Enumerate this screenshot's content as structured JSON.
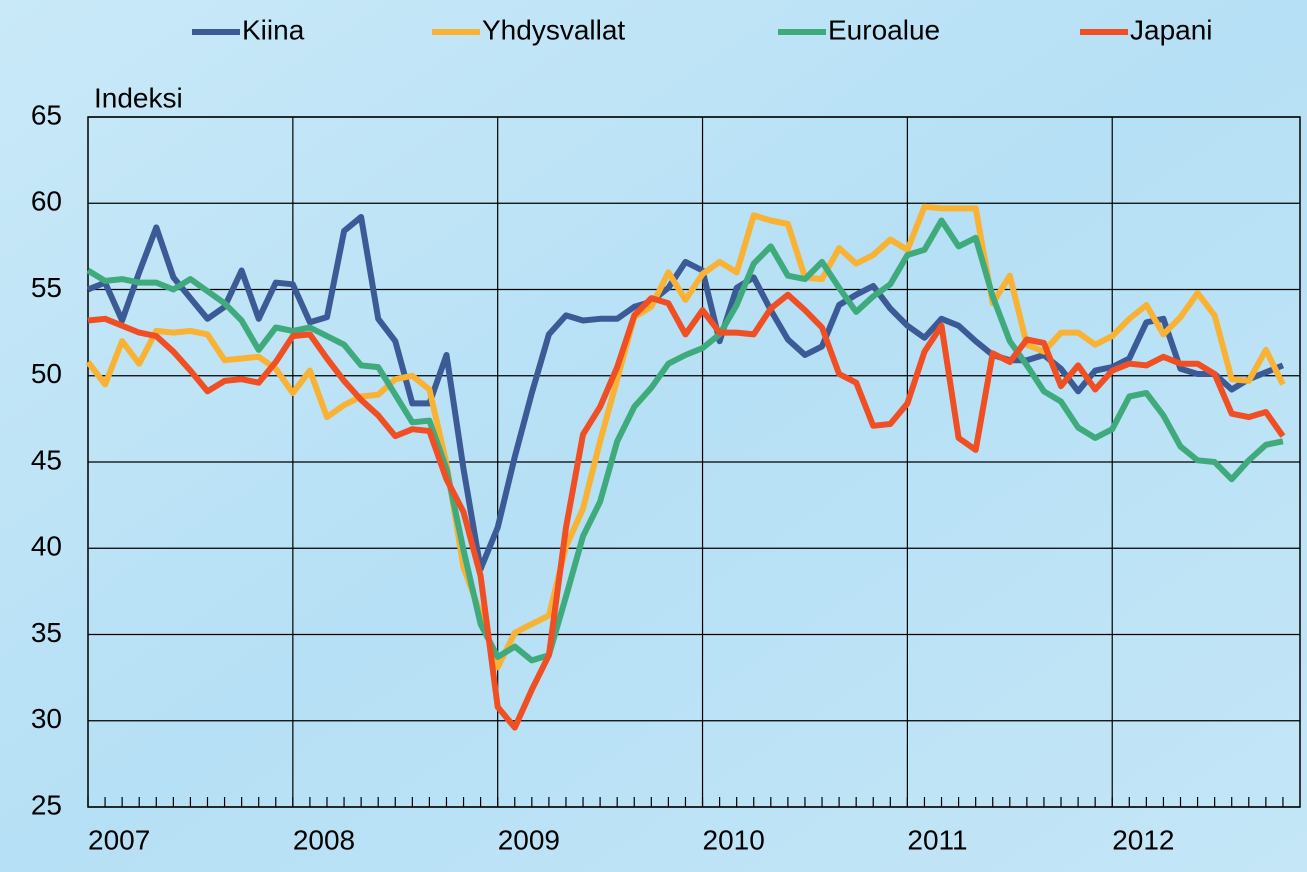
{
  "chart_data": {
    "type": "line",
    "ylabel": "Indeksi",
    "categories": [
      "2007",
      null,
      null,
      null,
      null,
      null,
      null,
      null,
      null,
      null,
      null,
      null,
      "2008",
      null,
      null,
      null,
      null,
      null,
      null,
      null,
      null,
      null,
      null,
      null,
      "2009",
      null,
      null,
      null,
      null,
      null,
      null,
      null,
      null,
      null,
      null,
      null,
      "2010",
      null,
      null,
      null,
      null,
      null,
      null,
      null,
      null,
      null,
      null,
      null,
      "2011",
      null,
      null,
      null,
      null,
      null,
      null,
      null,
      null,
      null,
      null,
      null,
      "2012",
      null,
      null,
      null,
      null,
      null,
      null,
      null,
      null,
      null,
      null
    ],
    "ylim": [
      25,
      65
    ],
    "yticks": [
      25,
      30,
      35,
      40,
      45,
      50,
      55,
      60,
      65
    ],
    "grid": true,
    "legend": "top",
    "series": [
      {
        "name": "Kiina",
        "color": "#3b5a96",
        "values": [
          55,
          55.4,
          53.2,
          56,
          58.6,
          55.7,
          54.5,
          53.3,
          54,
          56.1,
          53.3,
          55.4,
          55.3,
          53.1,
          53.4,
          58.4,
          59.2,
          53.3,
          52,
          48.4,
          48.4,
          51.2,
          44.6,
          38.8,
          41.2,
          45.3,
          49,
          52.4,
          53.5,
          53.2,
          53.3,
          53.3,
          54,
          54.3,
          55.1,
          56.6,
          56.1,
          52,
          55.1,
          55.7,
          53.8,
          52.1,
          51.2,
          51.7,
          54.1,
          54.7,
          55.2,
          53.9,
          52.9,
          52.2,
          53.3,
          52.9,
          52,
          51.2,
          50.9,
          50.9,
          51.2,
          50.4,
          49.1,
          50.3,
          50.5,
          51,
          53.1,
          53.3,
          50.4,
          50.1,
          50.1,
          49.2,
          49.8,
          50.2,
          50.6
        ]
      },
      {
        "name": "Yhdysvallat",
        "color": "#f9b233",
        "values": [
          50.8,
          49.5,
          52,
          50.7,
          52.6,
          52.5,
          52.6,
          52.4,
          50.9,
          51,
          51.1,
          50.4,
          49,
          50.3,
          47.6,
          48.3,
          48.8,
          48.9,
          49.8,
          50,
          49.2,
          44.9,
          38.9,
          36.2,
          33.1,
          35.1,
          35.6,
          36.1,
          40.1,
          42.3,
          46.2,
          49.8,
          53.4,
          54,
          56,
          54.4,
          55.9,
          56.6,
          56,
          59.3,
          59,
          58.8,
          55.7,
          55.6,
          57.4,
          56.5,
          57,
          57.9,
          57.3,
          59.8,
          59.7,
          59.7,
          59.7,
          54.2,
          55.8,
          51.8,
          51.4,
          52.5,
          52.5,
          51.8,
          52.3,
          53.3,
          54.1,
          52.4,
          53.4,
          54.8,
          53.5,
          49.8,
          49.7,
          51.5,
          49.5
        ]
      },
      {
        "name": "Euroalue",
        "color": "#3fab7c",
        "values": [
          56.1,
          55.5,
          55.6,
          55.4,
          55.4,
          55,
          55.6,
          54.9,
          54.2,
          53.2,
          51.5,
          52.8,
          52.6,
          52.8,
          52.3,
          51.8,
          50.6,
          50.5,
          48.9,
          47.3,
          47.4,
          44.6,
          39.9,
          35.6,
          33.7,
          34.3,
          33.5,
          33.8,
          37.2,
          40.7,
          42.7,
          46.2,
          48.2,
          49.3,
          50.7,
          51.2,
          51.6,
          52.4,
          54.1,
          56.5,
          57.5,
          55.8,
          55.6,
          56.6,
          55.1,
          53.7,
          54.6,
          55.3,
          57,
          57.3,
          59,
          57.5,
          58,
          54.6,
          52,
          50.6,
          49.1,
          48.5,
          47,
          46.4,
          46.9,
          48.8,
          49,
          47.7,
          45.9,
          45.1,
          45,
          44,
          45.1,
          46,
          46.2
        ]
      },
      {
        "name": "Japani",
        "color": "#f04e23",
        "values": [
          53.2,
          53.3,
          52.9,
          52.5,
          52.3,
          51.4,
          50.3,
          49.1,
          49.7,
          49.8,
          49.6,
          50.8,
          52.3,
          52.4,
          51,
          49.7,
          48.6,
          47.7,
          46.5,
          46.9,
          46.8,
          44,
          42.1,
          38.4,
          30.8,
          29.6,
          31.8,
          33.8,
          41.2,
          46.6,
          48.2,
          50.5,
          53.5,
          54.5,
          54.2,
          52.4,
          53.8,
          52.5,
          52.5,
          52.4,
          53.9,
          54.7,
          53.8,
          52.8,
          50.1,
          49.6,
          47.1,
          47.2,
          48.4,
          51.4,
          52.9,
          46.4,
          45.7,
          51.3,
          50.8,
          52.1,
          51.9,
          49.4,
          50.6,
          49.2,
          50.3,
          50.7,
          50.6,
          51.1,
          50.7,
          50.7,
          50.1,
          47.8,
          47.6,
          47.9,
          46.5
        ]
      }
    ]
  }
}
